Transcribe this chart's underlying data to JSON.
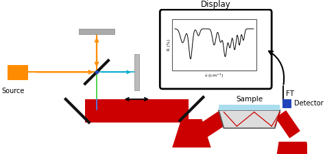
{
  "bg_color": "#ffffff",
  "orange": "#FF8C00",
  "red": "#CC0000",
  "black": "#111111",
  "gray_mirror": "#999999",
  "gray_light": "#BBBBBB",
  "blue_beam": "#4488FF",
  "cyan_beam": "#00AACC",
  "green_beam": "#33CC33",
  "detector_blue": "#2244BB",
  "display_label": "Display",
  "sample_label": "Sample",
  "source_label": "Source",
  "detector_label": "Detector",
  "ft_label": "FT"
}
